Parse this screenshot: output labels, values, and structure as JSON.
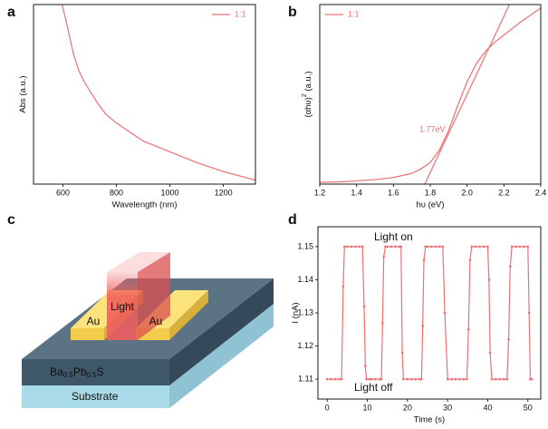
{
  "chart_data": [
    {
      "type": "line",
      "panel": "a",
      "xlabel": "Wavelength (nm)",
      "ylabel": [
        "Abs (a.u.)"
      ],
      "xlim": [
        490,
        1320
      ],
      "xticks": [
        600,
        800,
        1000,
        1200
      ],
      "ylim": [
        0,
        1
      ],
      "legend": "upper right",
      "series": [
        {
          "name": "1:1",
          "color": "#ee6f73",
          "x": [
            597,
            610,
            625,
            640,
            660,
            680,
            700,
            730,
            760,
            800,
            850,
            900,
            950,
            1000,
            1050,
            1100,
            1150,
            1200,
            1250,
            1300,
            1320
          ],
          "values": [
            1.0,
            0.92,
            0.82,
            0.72,
            0.63,
            0.57,
            0.52,
            0.45,
            0.39,
            0.34,
            0.29,
            0.24,
            0.21,
            0.18,
            0.15,
            0.12,
            0.095,
            0.07,
            0.05,
            0.03,
            0.022
          ]
        }
      ]
    },
    {
      "type": "line",
      "panel": "b",
      "xlabel": "hυ (eV)",
      "ylabel": [
        "(αhυ)",
        "2",
        " (a.u.)"
      ],
      "xlim": [
        1.2,
        2.4
      ],
      "xticks": [
        1.2,
        1.4,
        1.6,
        1.8,
        {
          "value": 2,
          "label": "2.0"
        },
        2.2,
        2.4
      ],
      "ylim": [
        0,
        1
      ],
      "legend": "upper left",
      "annotation": "1.77eV",
      "series": [
        {
          "name": "1:1",
          "color": "#ee6f73",
          "x": [
            1.2,
            1.3,
            1.4,
            1.5,
            1.6,
            1.7,
            1.75,
            1.8,
            1.85,
            1.9,
            1.95,
            2.0,
            2.05,
            2.1,
            2.15,
            2.2,
            2.3,
            2.4
          ],
          "values": [
            0.01,
            0.012,
            0.018,
            0.025,
            0.037,
            0.06,
            0.085,
            0.12,
            0.19,
            0.3,
            0.44,
            0.57,
            0.67,
            0.74,
            0.79,
            0.83,
            0.91,
            0.98
          ]
        },
        {
          "color": "#ee6f73",
          "x": [
            1.77,
            2.23
          ],
          "values": [
            0,
            1
          ]
        }
      ]
    },
    {
      "type": "line",
      "panel": "d",
      "xlabel": "Time (s)",
      "ylabel": [
        "I (nA)"
      ],
      "xlim": [
        -2.3,
        53.2
      ],
      "xticks": [
        0,
        10,
        20,
        30,
        40,
        50
      ],
      "ylim": [
        1.104,
        1.156
      ],
      "yticks": [
        1.11,
        1.12,
        1.13,
        1.14,
        1.15
      ],
      "annotations": [
        "Light on",
        "Light off"
      ],
      "series": [
        {
          "color": "#ee6f73",
          "markers": true,
          "x": [
            0,
            1,
            2,
            3,
            3.6,
            4,
            4.3,
            5,
            6,
            7,
            8,
            8.8,
            9.2,
            9.5,
            9.8,
            10.5,
            11,
            12,
            13,
            13.5,
            13.8,
            14.1,
            14.5,
            15,
            16,
            17,
            18,
            18.4,
            18.7,
            19,
            20,
            21,
            22,
            23,
            23.5,
            23.8,
            24.1,
            24.5,
            25,
            26,
            27,
            28,
            28.8,
            29.3,
            30,
            31,
            32,
            33,
            34,
            34.8,
            35.2,
            35.6,
            36,
            37,
            38,
            39,
            40,
            40.3,
            40.6,
            41,
            42,
            43,
            44,
            44.8,
            45.2,
            45.6,
            46,
            47,
            48,
            49,
            50,
            50.3,
            50.6,
            51
          ],
          "values": [
            1.11,
            1.11,
            1.11,
            1.11,
            1.11,
            1.138,
            1.15,
            1.15,
            1.15,
            1.15,
            1.15,
            1.15,
            1.132,
            1.114,
            1.11,
            1.11,
            1.11,
            1.11,
            1.11,
            1.11,
            1.127,
            1.147,
            1.15,
            1.15,
            1.15,
            1.15,
            1.15,
            1.15,
            1.118,
            1.11,
            1.11,
            1.11,
            1.11,
            1.11,
            1.11,
            1.126,
            1.146,
            1.15,
            1.15,
            1.15,
            1.15,
            1.15,
            1.15,
            1.13,
            1.11,
            1.11,
            1.11,
            1.11,
            1.11,
            1.11,
            1.125,
            1.146,
            1.15,
            1.15,
            1.15,
            1.15,
            1.15,
            1.14,
            1.118,
            1.11,
            1.11,
            1.11,
            1.11,
            1.11,
            1.122,
            1.144,
            1.15,
            1.15,
            1.15,
            1.15,
            1.15,
            1.13,
            1.11,
            1.11
          ]
        }
      ]
    }
  ],
  "diagram": {
    "panel": "c",
    "light": "Light",
    "electrodes": [
      "Au",
      "Au"
    ],
    "film": [
      "Ba",
      "0.5",
      "Pb",
      "0.5",
      "S"
    ],
    "substrate": "Substrate"
  }
}
